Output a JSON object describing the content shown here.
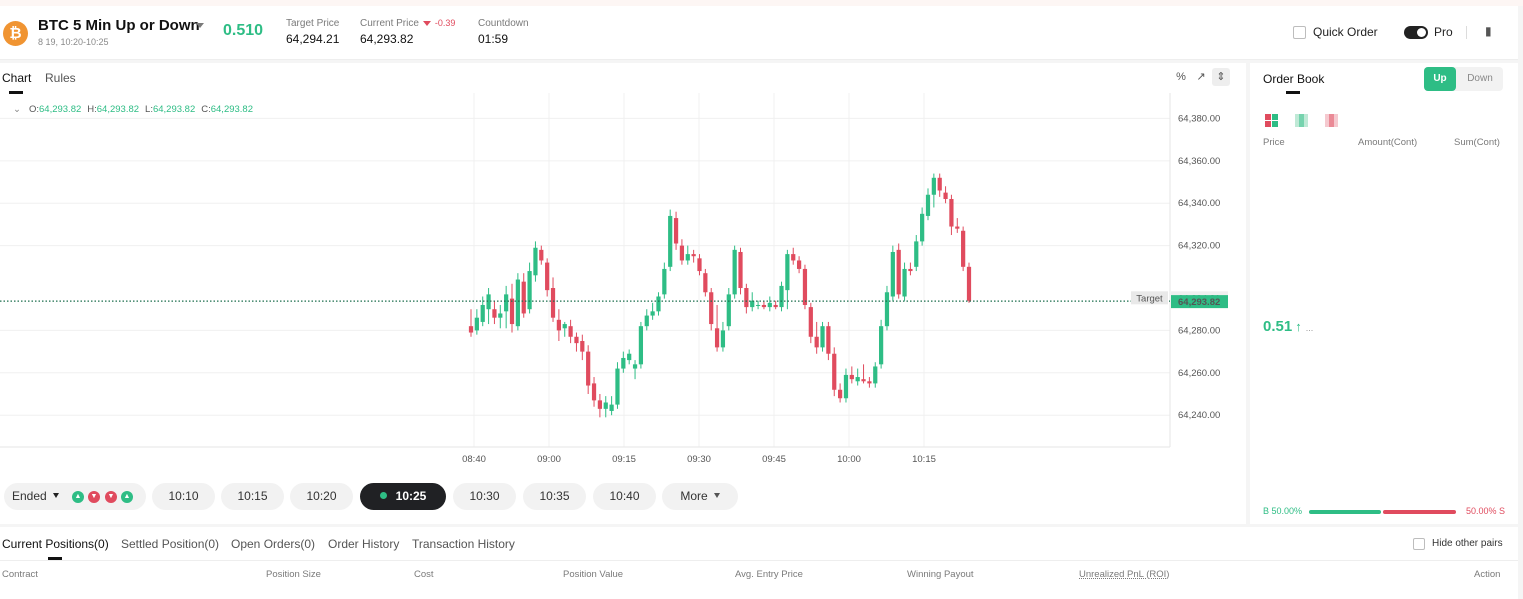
{
  "header": {
    "coin_symbol": "₿",
    "title": "BTC 5 Min Up or Down",
    "subtitle": "8 19, 10:20-10:25",
    "market_price": "0.510",
    "target_price_label": "Target Price",
    "target_price": "64,294.21",
    "current_price_label": "Current Price",
    "current_price_change": "-0.39",
    "current_price": "64,293.82",
    "countdown_label": "Countdown",
    "countdown": "01:59",
    "quick_order_label": "Quick Order",
    "pro_label": "Pro",
    "pro_enabled": true
  },
  "chart_tabs": [
    {
      "label": "Chart",
      "active": true
    },
    {
      "label": "Rules",
      "active": false
    }
  ],
  "ohlc": {
    "o_label": "O:",
    "o": "64,293.82",
    "h_label": "H:",
    "h": "64,293.82",
    "l_label": "L:",
    "l": "64,293.82",
    "c_label": "C:",
    "c": "64,293.82"
  },
  "chart_data": {
    "type": "candlestick",
    "y_ticks": [
      "64,380.00",
      "64,360.00",
      "64,340.00",
      "64,320.00",
      "64,280.00",
      "64,260.00",
      "64,240.00"
    ],
    "y_tick_values": [
      64380,
      64360,
      64340,
      64320,
      64280,
      64260,
      64240
    ],
    "ylim": [
      64225,
      64392
    ],
    "x_ticks": [
      "08:40",
      "09:00",
      "09:15",
      "09:30",
      "09:45",
      "10:00",
      "10:15"
    ],
    "target_label": "Target",
    "target_value": "64,294.21",
    "current_value": "64,293.82",
    "target": 64294.21,
    "current": 64293.82,
    "candles": [
      {
        "o": 64282,
        "h": 64290,
        "l": 64277,
        "c": 64279
      },
      {
        "o": 64280,
        "h": 64290,
        "l": 64278,
        "c": 64286
      },
      {
        "o": 64284,
        "h": 64296,
        "l": 64282,
        "c": 64292
      },
      {
        "o": 64290,
        "h": 64300,
        "l": 64283,
        "c": 64297
      },
      {
        "o": 64290,
        "h": 64294,
        "l": 64283,
        "c": 64286
      },
      {
        "o": 64286,
        "h": 64292,
        "l": 64281,
        "c": 64288
      },
      {
        "o": 64289,
        "h": 64301,
        "l": 64281,
        "c": 64297
      },
      {
        "o": 64295,
        "h": 64302,
        "l": 64279,
        "c": 64283
      },
      {
        "o": 64282,
        "h": 64307,
        "l": 64280,
        "c": 64304
      },
      {
        "o": 64303,
        "h": 64307,
        "l": 64286,
        "c": 64288
      },
      {
        "o": 64290,
        "h": 64312,
        "l": 64288,
        "c": 64308
      },
      {
        "o": 64306,
        "h": 64322,
        "l": 64303,
        "c": 64319
      },
      {
        "o": 64318,
        "h": 64320,
        "l": 64311,
        "c": 64313
      },
      {
        "o": 64312,
        "h": 64314,
        "l": 64296,
        "c": 64299
      },
      {
        "o": 64300,
        "h": 64305,
        "l": 64284,
        "c": 64286
      },
      {
        "o": 64285,
        "h": 64290,
        "l": 64275,
        "c": 64280
      },
      {
        "o": 64281,
        "h": 64284,
        "l": 64277,
        "c": 64283
      },
      {
        "o": 64282,
        "h": 64285,
        "l": 64274,
        "c": 64277
      },
      {
        "o": 64277,
        "h": 64279,
        "l": 64270,
        "c": 64274
      },
      {
        "o": 64275,
        "h": 64278,
        "l": 64266,
        "c": 64270
      },
      {
        "o": 64270,
        "h": 64273,
        "l": 64250,
        "c": 64254
      },
      {
        "o": 64255,
        "h": 64258,
        "l": 64244,
        "c": 64247
      },
      {
        "o": 64247,
        "h": 64250,
        "l": 64239,
        "c": 64243
      },
      {
        "o": 64243,
        "h": 64249,
        "l": 64239,
        "c": 64246
      },
      {
        "o": 64242,
        "h": 64249,
        "l": 64240,
        "c": 64245
      },
      {
        "o": 64245,
        "h": 64265,
        "l": 64243,
        "c": 64262
      },
      {
        "o": 64262,
        "h": 64270,
        "l": 64260,
        "c": 64267
      },
      {
        "o": 64266,
        "h": 64271,
        "l": 64264,
        "c": 64269
      },
      {
        "o": 64262,
        "h": 64266,
        "l": 64257,
        "c": 64264
      },
      {
        "o": 64264,
        "h": 64284,
        "l": 64262,
        "c": 64282
      },
      {
        "o": 64282,
        "h": 64290,
        "l": 64280,
        "c": 64287
      },
      {
        "o": 64287,
        "h": 64293,
        "l": 64285,
        "c": 64289
      },
      {
        "o": 64289,
        "h": 64298,
        "l": 64287,
        "c": 64296
      },
      {
        "o": 64297,
        "h": 64312,
        "l": 64295,
        "c": 64309
      },
      {
        "o": 64310,
        "h": 64337,
        "l": 64308,
        "c": 64334
      },
      {
        "o": 64333,
        "h": 64336,
        "l": 64318,
        "c": 64321
      },
      {
        "o": 64320,
        "h": 64323,
        "l": 64311,
        "c": 64313
      },
      {
        "o": 64313,
        "h": 64320,
        "l": 64311,
        "c": 64316
      },
      {
        "o": 64316,
        "h": 64318,
        "l": 64312,
        "c": 64315
      },
      {
        "o": 64314,
        "h": 64316,
        "l": 64306,
        "c": 64308
      },
      {
        "o": 64307,
        "h": 64309,
        "l": 64296,
        "c": 64298
      },
      {
        "o": 64298,
        "h": 64300,
        "l": 64280,
        "c": 64283
      },
      {
        "o": 64281,
        "h": 64292,
        "l": 64270,
        "c": 64272
      },
      {
        "o": 64272,
        "h": 64284,
        "l": 64270,
        "c": 64280
      },
      {
        "o": 64282,
        "h": 64300,
        "l": 64280,
        "c": 64297
      },
      {
        "o": 64297,
        "h": 64320,
        "l": 64295,
        "c": 64318
      },
      {
        "o": 64317,
        "h": 64319,
        "l": 64297,
        "c": 64300
      },
      {
        "o": 64300,
        "h": 64302,
        "l": 64288,
        "c": 64291
      },
      {
        "o": 64291,
        "h": 64298,
        "l": 64289,
        "c": 64294
      },
      {
        "o": 64292,
        "h": 64294,
        "l": 64290,
        "c": 64292
      },
      {
        "o": 64292,
        "h": 64294,
        "l": 64290,
        "c": 64291
      },
      {
        "o": 64291,
        "h": 64296,
        "l": 64289,
        "c": 64293
      },
      {
        "o": 64292,
        "h": 64294,
        "l": 64290,
        "c": 64291
      },
      {
        "o": 64291,
        "h": 64303,
        "l": 64289,
        "c": 64301
      },
      {
        "o": 64299,
        "h": 64318,
        "l": 64290,
        "c": 64316
      },
      {
        "o": 64316,
        "h": 64319,
        "l": 64311,
        "c": 64313
      },
      {
        "o": 64313,
        "h": 64315,
        "l": 64307,
        "c": 64309
      },
      {
        "o": 64309,
        "h": 64311,
        "l": 64290,
        "c": 64292
      },
      {
        "o": 64291,
        "h": 64293,
        "l": 64274,
        "c": 64277
      },
      {
        "o": 64277,
        "h": 64284,
        "l": 64269,
        "c": 64272
      },
      {
        "o": 64272,
        "h": 64284,
        "l": 64270,
        "c": 64282
      },
      {
        "o": 64282,
        "h": 64284,
        "l": 64266,
        "c": 64269
      },
      {
        "o": 64269,
        "h": 64272,
        "l": 64249,
        "c": 64252
      },
      {
        "o": 64252,
        "h": 64255,
        "l": 64246,
        "c": 64248
      },
      {
        "o": 64248,
        "h": 64262,
        "l": 64246,
        "c": 64259
      },
      {
        "o": 64259,
        "h": 64263,
        "l": 64255,
        "c": 64257
      },
      {
        "o": 64256,
        "h": 64262,
        "l": 64254,
        "c": 64258
      },
      {
        "o": 64257,
        "h": 64264,
        "l": 64255,
        "c": 64256
      },
      {
        "o": 64256,
        "h": 64258,
        "l": 64253,
        "c": 64255
      },
      {
        "o": 64255,
        "h": 64265,
        "l": 64253,
        "c": 64263
      },
      {
        "o": 64264,
        "h": 64285,
        "l": 64262,
        "c": 64282
      },
      {
        "o": 64282,
        "h": 64301,
        "l": 64280,
        "c": 64298
      },
      {
        "o": 64296,
        "h": 64320,
        "l": 64294,
        "c": 64317
      },
      {
        "o": 64318,
        "h": 64321,
        "l": 64295,
        "c": 64297
      },
      {
        "o": 64296,
        "h": 64312,
        "l": 64294,
        "c": 64309
      },
      {
        "o": 64309,
        "h": 64312,
        "l": 64306,
        "c": 64308
      },
      {
        "o": 64310,
        "h": 64325,
        "l": 64308,
        "c": 64322
      },
      {
        "o": 64322,
        "h": 64338,
        "l": 64320,
        "c": 64335
      },
      {
        "o": 64334,
        "h": 64347,
        "l": 64332,
        "c": 64344
      },
      {
        "o": 64344,
        "h": 64354,
        "l": 64338,
        "c": 64352
      },
      {
        "o": 64352,
        "h": 64354,
        "l": 64343,
        "c": 64346
      },
      {
        "o": 64345,
        "h": 64348,
        "l": 64340,
        "c": 64342
      },
      {
        "o": 64342,
        "h": 64344,
        "l": 64325,
        "c": 64329
      },
      {
        "o": 64329,
        "h": 64333,
        "l": 64326,
        "c": 64328
      },
      {
        "o": 64327,
        "h": 64329,
        "l": 64308,
        "c": 64310
      },
      {
        "o": 64310,
        "h": 64312,
        "l": 64293,
        "c": 64294
      }
    ]
  },
  "slots": {
    "ended_label": "Ended",
    "results": [
      "up",
      "down",
      "down",
      "up"
    ],
    "times": [
      "10:10",
      "10:15",
      "10:20",
      "10:25",
      "10:30",
      "10:35",
      "10:40"
    ],
    "active_time": "10:25",
    "more_label": "More"
  },
  "orderbook": {
    "title": "Order Book",
    "up_label": "Up",
    "down_label": "Down",
    "col_price": "Price",
    "col_amount": "Amount(Cont)",
    "col_sum": "Sum(Cont)",
    "mid_price": "0.51",
    "mid_more": "...",
    "buy_ratio": "B 50.00%",
    "sell_ratio": "50.00% S",
    "buy_fraction": 0.5
  },
  "bottom": {
    "tabs": [
      "Current Positions(0)",
      "Settled Position(0)",
      "Open Orders(0)",
      "Order History",
      "Transaction History"
    ],
    "hide_label": "Hide other pairs",
    "columns": [
      "Contract",
      "Position Size",
      "Cost",
      "Position Value",
      "Avg. Entry Price",
      "Winning Payout",
      "Unrealized PnL (ROI)",
      "Action"
    ]
  },
  "colors": {
    "up": "#2ebd85",
    "down": "#e04b5e",
    "coin": "#f09432"
  }
}
